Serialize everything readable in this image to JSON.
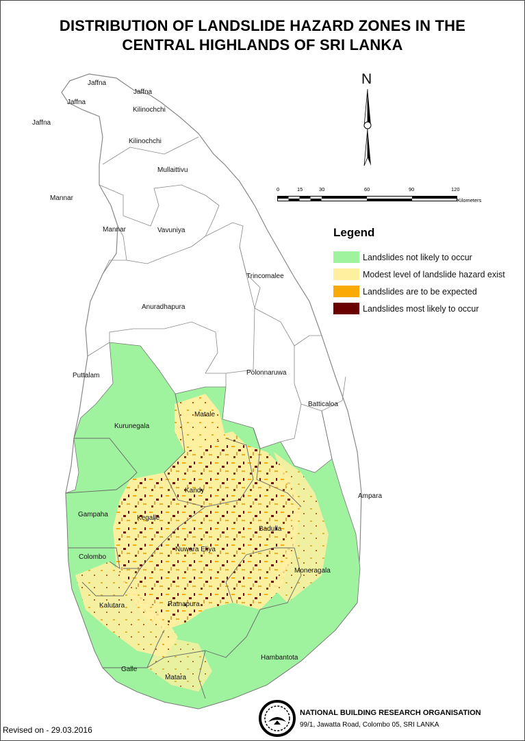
{
  "title_line1": "DISTRIBUTION OF LANDSLIDE HAZARD ZONES IN THE",
  "title_line2": "CENTRAL HIGHLANDS OF SRI LANKA",
  "north_label": "N",
  "scale": {
    "ticks": [
      "0",
      "15",
      "30",
      "60",
      "90",
      "120"
    ],
    "unit": "Kilometers"
  },
  "legend": {
    "title": "Legend",
    "items": [
      {
        "label": "Landslides not likely to occur",
        "color": "#9FF29E"
      },
      {
        "label": "Modest level of landslide hazard exist",
        "color": "#FFF0A0"
      },
      {
        "label": "Landslides are to be expected",
        "color": "#FBAA05"
      },
      {
        "label": "Landslides most likely to occur",
        "color": "#6B0000"
      }
    ]
  },
  "districts": {
    "jaffna_a": "Jaffna",
    "jaffna_b": "Jaffna",
    "jaffna_c": "Jaffna",
    "jaffna_d": "Jaffna",
    "kilinochchi_a": "Kilinochchi",
    "kilinochchi_b": "Kilinochchi",
    "mullaittivu": "Mullaittivu",
    "mannar_a": "Mannar",
    "mannar_b": "Mannar",
    "vavuniya": "Vavuniya",
    "trincomalee": "Trincomalee",
    "anuradhapura": "Anuradhapura",
    "puttalam": "Puttalam",
    "polonnaruwa": "Polonnaruwa",
    "batticaloa": "Batticaloa",
    "kurunegala": "Kurunegala",
    "matale": "Matale",
    "kandy": "Kandy",
    "ampara": "Ampara",
    "gampaha": "Gampaha",
    "kegalle": "Kegalle",
    "badulla": "Badulla",
    "nuwara_eliya": "Nuwara Eliya",
    "colombo": "Colombo",
    "moneragala": "Moneragala",
    "kalutara": "Kalutara",
    "ratnapura": "Ratnapura",
    "hambantota": "Hambantota",
    "galle": "Galle",
    "matara": "Matara"
  },
  "revised": "Revised on - 29.03.2016",
  "org": {
    "name": "NATIONAL BUILDING RESEARCH ORGANISATION",
    "address": "99/1, Jawatta Road, Colombo 05, SRI LANKA"
  }
}
